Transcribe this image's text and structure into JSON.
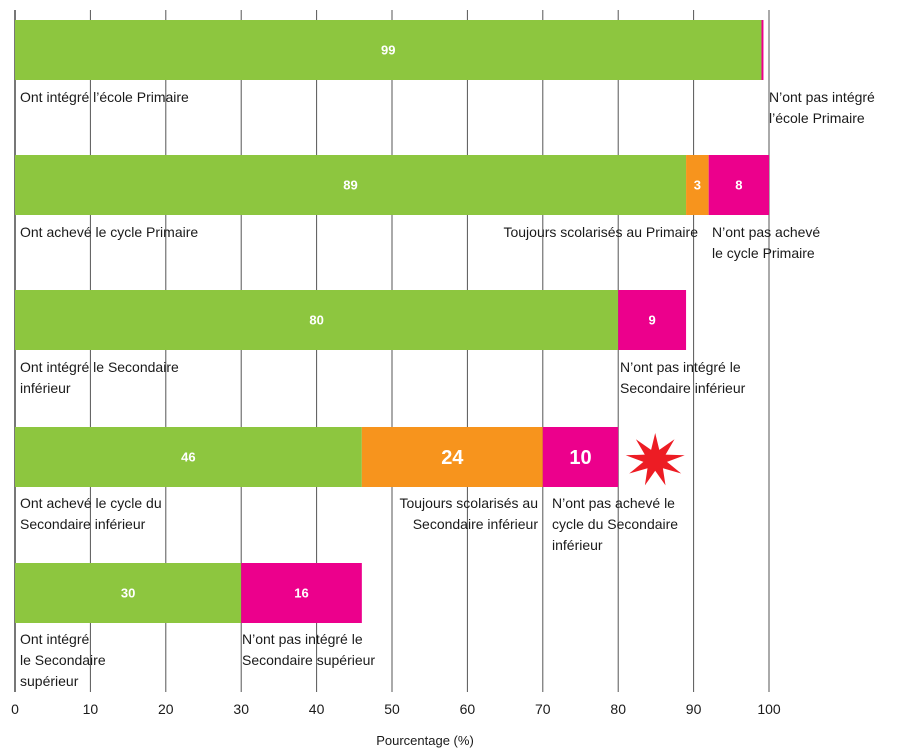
{
  "chart_data": {
    "type": "bar",
    "orientation": "horizontal",
    "stacked": true,
    "xlabel": "Pourcentage (%)",
    "xlim": [
      0,
      100
    ],
    "xticks": [
      0,
      10,
      20,
      30,
      40,
      50,
      60,
      70,
      80,
      90,
      100
    ],
    "grid": true,
    "colors": {
      "green": "#8dc63f",
      "orange": "#f7941d",
      "magenta": "#ec008c",
      "burst": "#ed1c24"
    },
    "bars": [
      {
        "segments": [
          {
            "value": 99,
            "label": "99",
            "color": "green",
            "annotation": [
              "Ont intégré l’école Primaire"
            ]
          },
          {
            "value": 0.2,
            "label": "0,2",
            "color": "magenta",
            "annotation": [
              "N’ont pas intégré",
              "l’école Primaire"
            ]
          }
        ]
      },
      {
        "segments": [
          {
            "value": 89,
            "label": "89",
            "color": "green",
            "annotation": [
              "Ont achevé le cycle Primaire"
            ]
          },
          {
            "value": 3,
            "label": "3",
            "color": "orange",
            "annotation": [
              "Toujours scolarisés au Primaire"
            ]
          },
          {
            "value": 8,
            "label": "8",
            "color": "magenta",
            "annotation": [
              "N’ont pas achevé",
              "le cycle Primaire"
            ]
          }
        ]
      },
      {
        "segments": [
          {
            "value": 80,
            "label": "80",
            "color": "green",
            "annotation": [
              "Ont intégré le Secondaire",
              "inférieur"
            ]
          },
          {
            "value": 9,
            "label": "9",
            "color": "magenta",
            "annotation": [
              "N’ont pas intégré le",
              "Secondaire inférieur"
            ]
          }
        ]
      },
      {
        "highlight": true,
        "segments": [
          {
            "value": 46,
            "label": "46",
            "color": "green",
            "annotation": [
              "Ont achevé le cycle du",
              "Secondaire inférieur"
            ]
          },
          {
            "value": 24,
            "label": "24",
            "color": "orange",
            "annotation": [
              "Toujours scolarisés au",
              "Secondaire inférieur"
            ]
          },
          {
            "value": 10,
            "label": "10",
            "color": "magenta",
            "annotation": [
              "N’ont pas achevé le",
              "cycle du Secondaire",
              "inférieur"
            ]
          }
        ]
      },
      {
        "segments": [
          {
            "value": 30,
            "label": "30",
            "color": "green",
            "annotation": [
              "Ont intégré",
              "le Secondaire",
              "supérieur"
            ]
          },
          {
            "value": 16,
            "label": "16",
            "color": "magenta",
            "annotation": [
              "N’ont pas intégré le",
              "Secondaire supérieur"
            ]
          }
        ]
      }
    ]
  }
}
